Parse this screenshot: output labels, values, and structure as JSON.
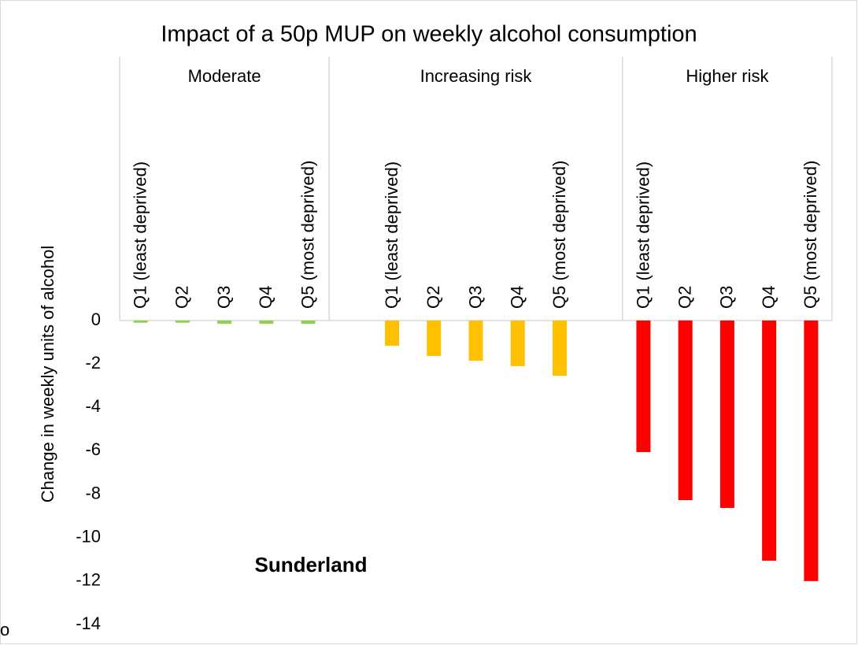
{
  "chart_data": {
    "type": "bar",
    "title": "Impact of a 50p MUP on weekly alcohol consumption",
    "y_label": "Change in weekly units of alcohol",
    "annotation": "Sunderland",
    "footnote": "o",
    "categories": [
      "Q1 (least deprived)",
      "Q2",
      "Q3",
      "Q4",
      "Q5 (most deprived)"
    ],
    "series": [
      {
        "name": "Moderate",
        "color": "#92d050",
        "values": [
          -0.1,
          -0.1,
          -0.15,
          -0.15,
          -0.15
        ]
      },
      {
        "name": "Increasing risk",
        "color": "#ffc000",
        "values": [
          -1.16,
          -1.63,
          -1.85,
          -2.1,
          -2.54
        ]
      },
      {
        "name": "Higher risk",
        "color": "#ff0000",
        "values": [
          -6.06,
          -8.27,
          -8.63,
          -11.06,
          -12.0
        ]
      }
    ],
    "ylim": [
      -14,
      0
    ],
    "yticks": [
      0,
      -2,
      -4,
      -6,
      -8,
      -10,
      -12,
      -14
    ]
  }
}
